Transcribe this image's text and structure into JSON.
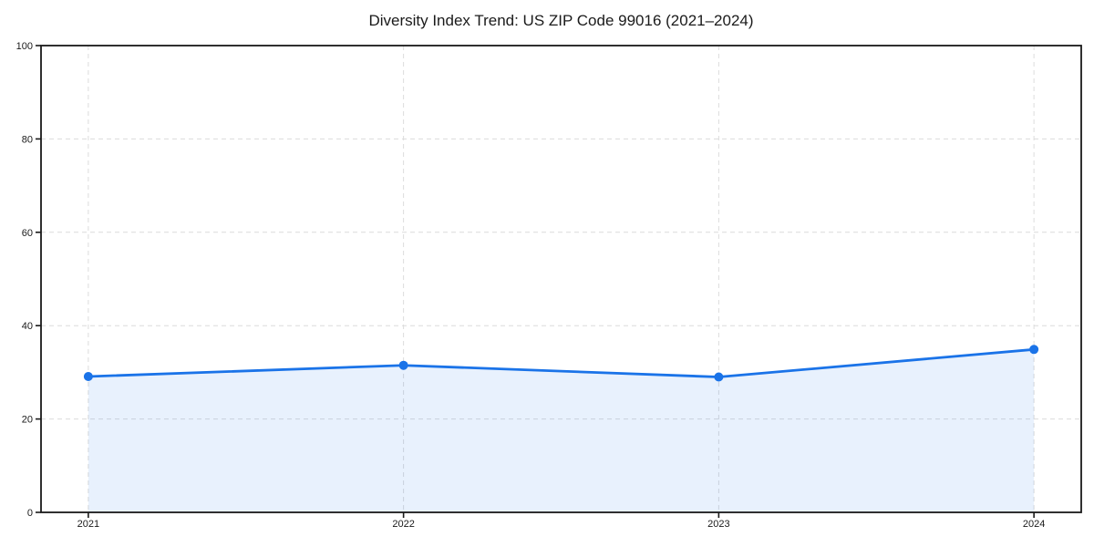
{
  "chart_data": {
    "type": "line",
    "title": "Diversity Index Trend: US ZIP Code 99016 (2021–2024)",
    "x_labels": [
      "2021",
      "2022",
      "2023",
      "2024"
    ],
    "series": [
      {
        "name": "Diversity Index",
        "values": [
          29.1,
          31.5,
          29.0,
          34.9
        ]
      }
    ],
    "xlabel": "",
    "ylabel": "",
    "ylim": [
      0,
      100
    ],
    "yticks": [
      0,
      20,
      40,
      60,
      80,
      100
    ],
    "grid": "dashed",
    "legend": "none",
    "area_fill": true,
    "marker": "circle",
    "colors": {
      "line": "#1a73e8",
      "marker": "#1a73e8",
      "fill": "#1a73e8",
      "fill_opacity": 0.1,
      "grid": "#dcdcdc",
      "axis": "#1a1a1a",
      "text": "#1a1a1a",
      "background": "#ffffff"
    }
  }
}
